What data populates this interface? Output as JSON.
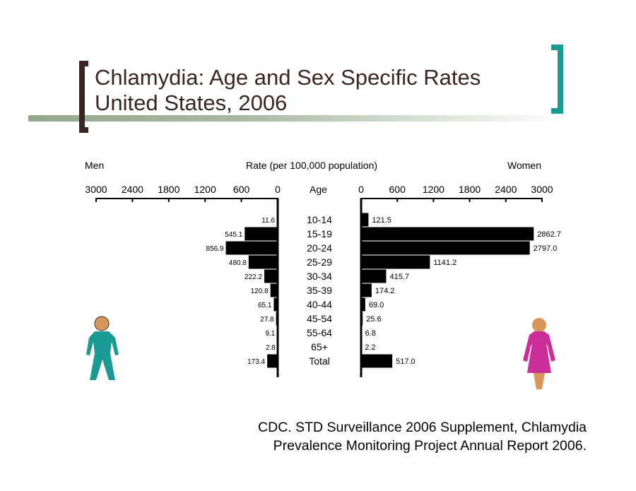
{
  "slide": {
    "title_line1": "Chlamydia: Age and Sex Specific Rates",
    "title_line2": "United States, 2006",
    "citation_line1": "CDC. STD Surveillance 2006 Supplement, Chlamydia",
    "citation_line2": "Prevalence Monitoring Project Annual Report 2006.",
    "colors": {
      "title_text": "#3a2424",
      "left_bracket": "#3a2424",
      "right_bracket": "#1a9a94",
      "title_bar": "#93a88b",
      "bars": "#000000",
      "man_figure": "#1a9a94",
      "woman_figure": "#cc2e99",
      "skin": "#d9965a"
    },
    "icons": {
      "men": "man-figure-icon",
      "women": "woman-figure-icon"
    }
  },
  "chart_data": {
    "type": "bar",
    "orientation": "horizontal-population-pyramid",
    "title": "Rate (per 100,000 population)",
    "left_label": "Men",
    "right_label": "Women",
    "center_label": "Age",
    "categories": [
      "10-14",
      "15-19",
      "20-24",
      "25-29",
      "30-34",
      "35-39",
      "40-44",
      "45-54",
      "55-64",
      "65+",
      "Total"
    ],
    "series": [
      {
        "name": "Men",
        "values": [
          11.6,
          545.1,
          856.9,
          480.8,
          222.2,
          120.8,
          65.1,
          27.8,
          9.1,
          2.8,
          173.4
        ],
        "labels": [
          "11.6",
          "545.1",
          "856.9",
          "480.8",
          "222.2",
          "120.8",
          "65.1",
          "27.8",
          "9.1",
          "2.8",
          "173.4"
        ]
      },
      {
        "name": "Women",
        "values": [
          121.5,
          2862.7,
          2797.0,
          1141.2,
          415.7,
          174.2,
          69.0,
          25.6,
          6.8,
          2.2,
          517.0
        ],
        "labels": [
          "121.5",
          "2862.7",
          "2797.0",
          "1141.2",
          "415.7",
          "174.2",
          "69.0",
          "25.6",
          "6.8",
          "2.2",
          "517.0"
        ]
      }
    ],
    "xlim": [
      0,
      3000
    ],
    "ticks": [
      0,
      600,
      1200,
      1800,
      2400,
      3000
    ],
    "tick_labels_men": [
      "3000",
      "2400",
      "1800",
      "1200",
      "600",
      "0"
    ],
    "tick_labels_women": [
      "0",
      "600",
      "1200",
      "1800",
      "2400",
      "3000"
    ],
    "grid": false,
    "legend": "none"
  }
}
